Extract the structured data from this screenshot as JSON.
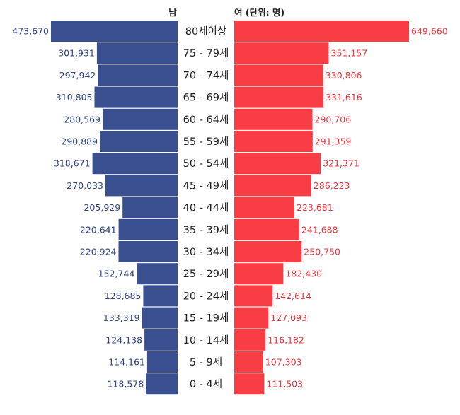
{
  "chart_data": {
    "type": "bar",
    "orientation": "horizontal-pyramid",
    "header_left": "남",
    "header_right": "여 (단위: 명)",
    "categories": [
      "80세이상",
      "75 - 79세",
      "70 - 74세",
      "65 - 69세",
      "60 - 64세",
      "55 - 59세",
      "50 - 54세",
      "45 - 49세",
      "40 - 44세",
      "35 - 39세",
      "30 - 34세",
      "25 - 29세",
      "20 - 24세",
      "15 - 19세",
      "10 - 14세",
      "5 - 9세",
      "0 - 4세"
    ],
    "series": [
      {
        "name": "남",
        "color": "#3a4f8f",
        "label_color": "#2f4585",
        "values": [
          473670,
          301931,
          297942,
          310805,
          280569,
          290889,
          318671,
          270033,
          205929,
          220641,
          220924,
          152744,
          128685,
          133319,
          124138,
          114161,
          118578
        ],
        "labels": [
          "473,670",
          "301,931",
          "297,942",
          "310,805",
          "280,569",
          "290,889",
          "318,671",
          "270,033",
          "205,929",
          "220,641",
          "220,924",
          "152,744",
          "128,685",
          "133,319",
          "124,138",
          "114,161",
          "118,578"
        ]
      },
      {
        "name": "여",
        "color": "#f93d44",
        "label_color": "#f0353d",
        "values": [
          649660,
          351157,
          330806,
          331616,
          290706,
          291359,
          321371,
          286223,
          223681,
          241688,
          250750,
          182430,
          142614,
          127093,
          116182,
          107303,
          111503
        ],
        "labels": [
          "649,660",
          "351,157",
          "330,806",
          "331,616",
          "290,706",
          "291,359",
          "321,371",
          "286,223",
          "223,681",
          "241,688",
          "250,750",
          "182,430",
          "142,614",
          "127,093",
          "116,182",
          "107,303",
          "111,503"
        ]
      }
    ],
    "grid": false,
    "legend": "none"
  }
}
